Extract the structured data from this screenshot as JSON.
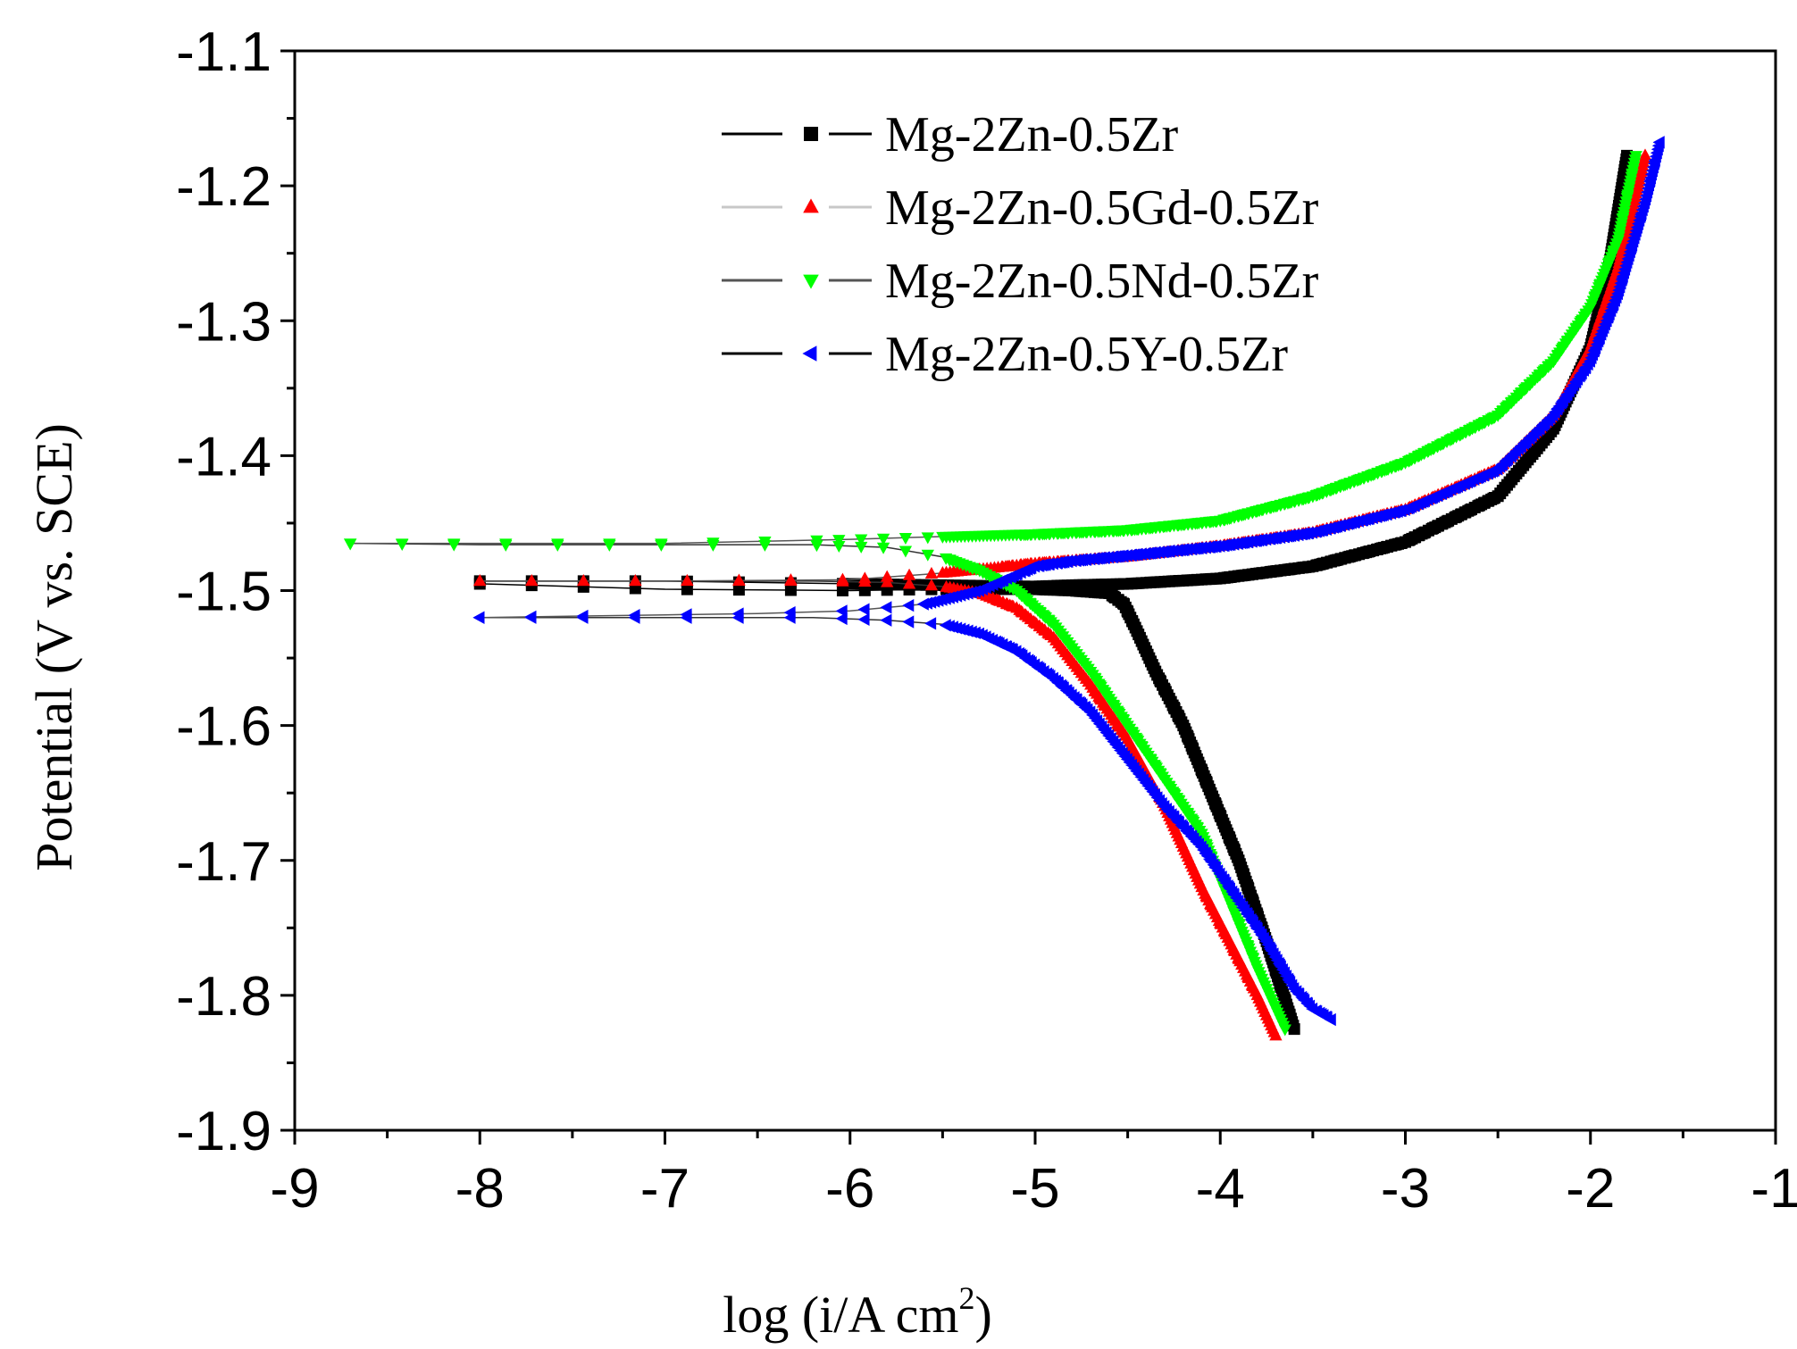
{
  "chart_data": {
    "type": "line",
    "title": "",
    "xlabel_main": "log (i/A cm",
    "xlabel_sup": "2",
    "xlabel_close": ")",
    "ylabel": "Potential (V vs. SCE)",
    "xlim": [
      -9,
      -1
    ],
    "ylim": [
      -1.9,
      -1.1
    ],
    "xticks": [
      -9,
      -8,
      -7,
      -6,
      -5,
      -4,
      -3,
      -2,
      -1
    ],
    "yticks": [
      -1.1,
      -1.2,
      -1.3,
      -1.4,
      -1.5,
      -1.6,
      -1.7,
      -1.8,
      -1.9
    ],
    "xtick_labels": [
      "-9",
      "-8",
      "-7",
      "-6",
      "-5",
      "-4",
      "-3",
      "-2",
      "-1"
    ],
    "ytick_labels": [
      "-1.1",
      "-1.2",
      "-1.3",
      "-1.4",
      "-1.5",
      "-1.6",
      "-1.7",
      "-1.8",
      "-1.9"
    ],
    "legend_position": "top-center",
    "grid": false,
    "series": [
      {
        "name": "Mg-2Zn-0.5Zr",
        "color": "#000000",
        "marker": "square",
        "ecorr": -1.5,
        "cathodic": [
          [
            -3.6,
            -1.825
          ],
          [
            -3.75,
            -1.76
          ],
          [
            -3.9,
            -1.7
          ],
          [
            -4.05,
            -1.65
          ],
          [
            -4.2,
            -1.6
          ],
          [
            -4.35,
            -1.56
          ],
          [
            -4.45,
            -1.53
          ],
          [
            -4.52,
            -1.51
          ],
          [
            -4.6,
            -1.502
          ],
          [
            -4.8,
            -1.5
          ],
          [
            -5.0,
            -1.499
          ],
          [
            -5.5,
            -1.499
          ],
          [
            -6.0,
            -1.5
          ],
          [
            -7.0,
            -1.499
          ],
          [
            -8.0,
            -1.495
          ]
        ],
        "anodic": [
          [
            -8.0,
            -1.493
          ],
          [
            -7.0,
            -1.493
          ],
          [
            -6.0,
            -1.495
          ],
          [
            -5.0,
            -1.497
          ],
          [
            -4.8,
            -1.496
          ],
          [
            -4.5,
            -1.495
          ],
          [
            -4.0,
            -1.491
          ],
          [
            -3.5,
            -1.482
          ],
          [
            -3.0,
            -1.464
          ],
          [
            -2.5,
            -1.43
          ],
          [
            -2.2,
            -1.38
          ],
          [
            -2.0,
            -1.32
          ],
          [
            -1.9,
            -1.26
          ],
          [
            -1.8,
            -1.175
          ]
        ]
      },
      {
        "name": "Mg-2Zn-0.5Gd-0.5Zr",
        "color": "#ff0000",
        "marker": "triangle-up",
        "ecorr": -1.493,
        "cathodic": [
          [
            -3.7,
            -1.83
          ],
          [
            -3.8,
            -1.8
          ],
          [
            -3.95,
            -1.76
          ],
          [
            -4.1,
            -1.72
          ],
          [
            -4.3,
            -1.66
          ],
          [
            -4.5,
            -1.61
          ],
          [
            -4.7,
            -1.57
          ],
          [
            -4.9,
            -1.535
          ],
          [
            -5.1,
            -1.513
          ],
          [
            -5.3,
            -1.502
          ],
          [
            -5.5,
            -1.497
          ],
          [
            -5.8,
            -1.494
          ],
          [
            -6.2,
            -1.493
          ],
          [
            -7.0,
            -1.493
          ],
          [
            -8.0,
            -1.493
          ]
        ],
        "anodic": [
          [
            -8.0,
            -1.493
          ],
          [
            -7.0,
            -1.493
          ],
          [
            -6.0,
            -1.492
          ],
          [
            -5.8,
            -1.49
          ],
          [
            -5.5,
            -1.487
          ],
          [
            -5.2,
            -1.483
          ],
          [
            -5.0,
            -1.48
          ],
          [
            -4.5,
            -1.475
          ],
          [
            -4.0,
            -1.467
          ],
          [
            -3.5,
            -1.457
          ],
          [
            -3.0,
            -1.44
          ],
          [
            -2.5,
            -1.41
          ],
          [
            -2.2,
            -1.37
          ],
          [
            -2.0,
            -1.32
          ],
          [
            -1.85,
            -1.26
          ],
          [
            -1.7,
            -1.175
          ]
        ]
      },
      {
        "name": "Mg-2Zn-0.5Nd-0.5Zr",
        "color": "#00ff00",
        "marker": "triangle-down",
        "ecorr": -1.465,
        "cathodic": [
          [
            -3.65,
            -1.825
          ],
          [
            -3.8,
            -1.78
          ],
          [
            -3.95,
            -1.73
          ],
          [
            -4.1,
            -1.68
          ],
          [
            -4.3,
            -1.64
          ],
          [
            -4.5,
            -1.6
          ],
          [
            -4.7,
            -1.56
          ],
          [
            -4.9,
            -1.525
          ],
          [
            -5.1,
            -1.5
          ],
          [
            -5.3,
            -1.485
          ],
          [
            -5.5,
            -1.475
          ],
          [
            -5.8,
            -1.468
          ],
          [
            -6.2,
            -1.466
          ],
          [
            -7.0,
            -1.466
          ],
          [
            -8.0,
            -1.466
          ],
          [
            -8.7,
            -1.465
          ]
        ],
        "anodic": [
          [
            -8.7,
            -1.465
          ],
          [
            -7.0,
            -1.465
          ],
          [
            -6.0,
            -1.462
          ],
          [
            -5.5,
            -1.46
          ],
          [
            -5.0,
            -1.458
          ],
          [
            -4.5,
            -1.455
          ],
          [
            -4.0,
            -1.448
          ],
          [
            -3.5,
            -1.43
          ],
          [
            -3.0,
            -1.405
          ],
          [
            -2.5,
            -1.37
          ],
          [
            -2.2,
            -1.33
          ],
          [
            -2.0,
            -1.29
          ],
          [
            -1.85,
            -1.24
          ],
          [
            -1.75,
            -1.175
          ]
        ]
      },
      {
        "name": "Mg-2Zn-0.5Y-0.5Zr",
        "color": "#0000ff",
        "marker": "triangle-left",
        "ecorr": -1.52,
        "cathodic": [
          [
            -3.4,
            -1.818
          ],
          [
            -3.5,
            -1.81
          ],
          [
            -3.6,
            -1.795
          ],
          [
            -3.75,
            -1.76
          ],
          [
            -3.9,
            -1.73
          ],
          [
            -4.1,
            -1.69
          ],
          [
            -4.3,
            -1.66
          ],
          [
            -4.5,
            -1.625
          ],
          [
            -4.7,
            -1.59
          ],
          [
            -4.9,
            -1.565
          ],
          [
            -5.1,
            -1.545
          ],
          [
            -5.3,
            -1.532
          ],
          [
            -5.5,
            -1.525
          ],
          [
            -5.8,
            -1.522
          ],
          [
            -6.2,
            -1.52
          ],
          [
            -7.0,
            -1.52
          ],
          [
            -8.0,
            -1.52
          ]
        ],
        "anodic": [
          [
            -8.0,
            -1.52
          ],
          [
            -7.0,
            -1.518
          ],
          [
            -6.5,
            -1.517
          ],
          [
            -6.0,
            -1.515
          ],
          [
            -5.6,
            -1.51
          ],
          [
            -5.3,
            -1.5
          ],
          [
            -5.0,
            -1.482
          ],
          [
            -4.8,
            -1.478
          ],
          [
            -4.5,
            -1.474
          ],
          [
            -4.0,
            -1.467
          ],
          [
            -3.5,
            -1.457
          ],
          [
            -3.0,
            -1.44
          ],
          [
            -2.5,
            -1.41
          ],
          [
            -2.2,
            -1.37
          ],
          [
            -2.0,
            -1.33
          ],
          [
            -1.85,
            -1.28
          ],
          [
            -1.7,
            -1.21
          ],
          [
            -1.62,
            -1.165
          ]
        ]
      }
    ]
  }
}
